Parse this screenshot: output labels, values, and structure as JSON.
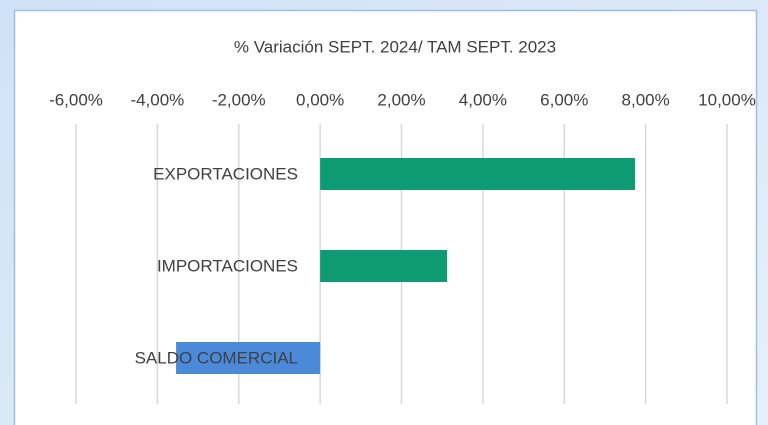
{
  "chart_data": {
    "type": "hbar",
    "title": "% Variación SEPT.  2024/ TAM SEPT. 2023",
    "categories": [
      "EXPORTACIONES",
      "IMPORTACIONES",
      "SALDO COMERCIAL"
    ],
    "values": [
      7.74,
      3.12,
      -3.54
    ],
    "colors": [
      "#0f9b74",
      "#0f9b74",
      "#4a8ad9"
    ],
    "xlim": [
      -6,
      10
    ],
    "xticks": [
      {
        "value": -6,
        "label": "-6,00%"
      },
      {
        "value": -4,
        "label": "-4,00%"
      },
      {
        "value": -2,
        "label": "-2,00%"
      },
      {
        "value": 0,
        "label": "0,00%"
      },
      {
        "value": 2,
        "label": "2,00%"
      },
      {
        "value": 4,
        "label": "4,00%"
      },
      {
        "value": 6,
        "label": "6,00%"
      },
      {
        "value": 8,
        "label": "8,00%"
      },
      {
        "value": 10,
        "label": "10,00%"
      }
    ],
    "grid": true
  }
}
